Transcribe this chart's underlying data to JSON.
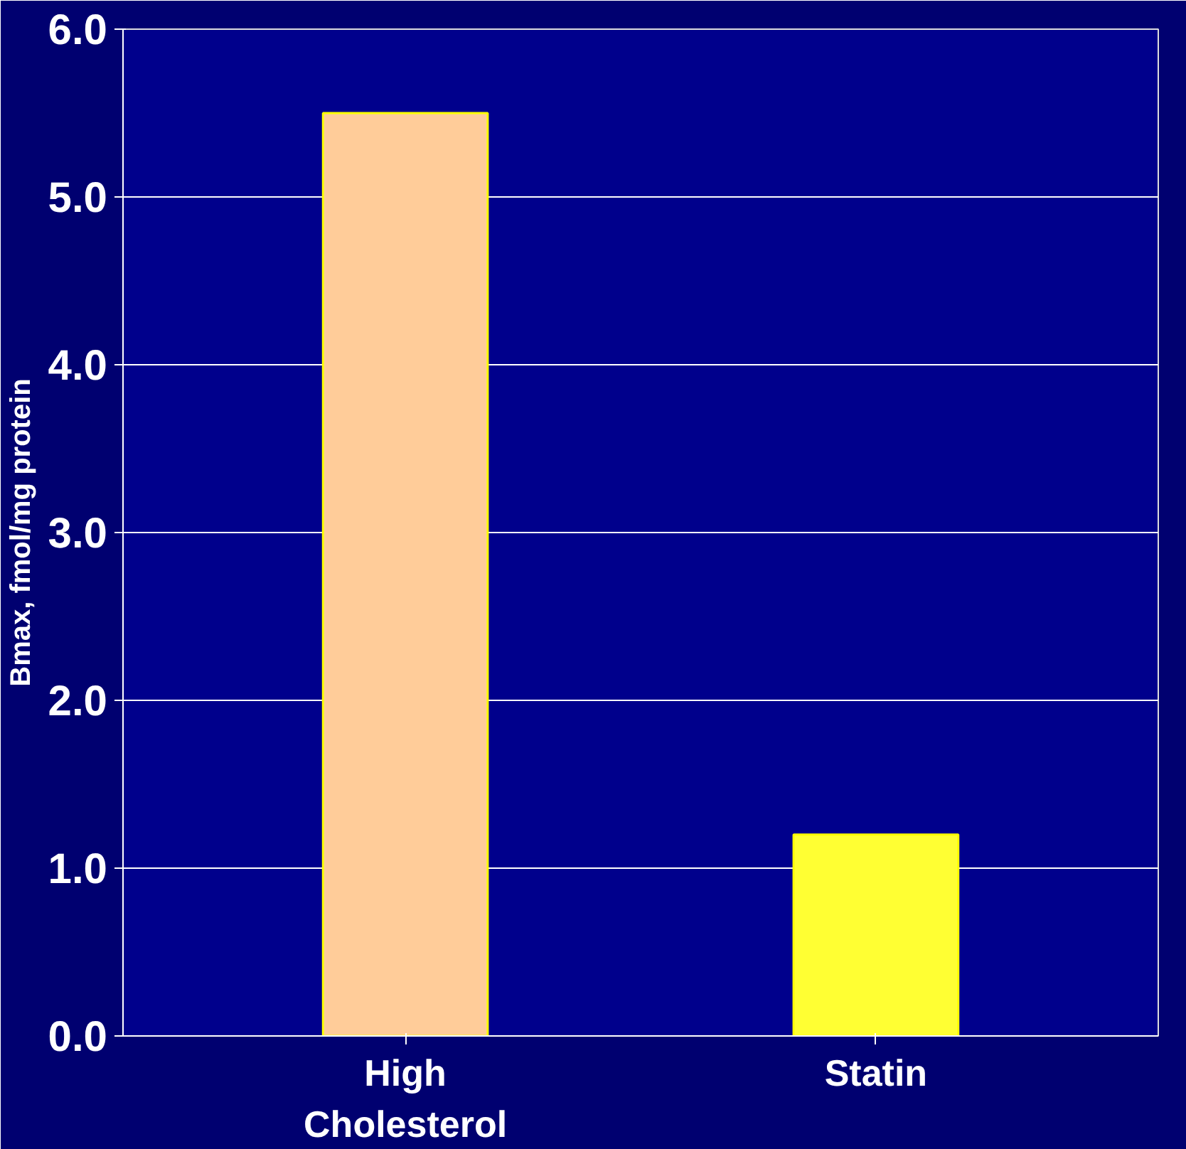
{
  "chart_data": {
    "type": "bar",
    "ylabel": "Bmax, fmol/mg protein",
    "categories": [
      "High Cholesterol",
      "Statin"
    ],
    "values": [
      5.5,
      1.2
    ],
    "colors": [
      "#ffcc99",
      "#ffff33"
    ],
    "ylim": [
      0,
      6
    ],
    "yticks": [
      {
        "value": 0,
        "label": "0.0"
      },
      {
        "value": 1,
        "label": "1.0"
      },
      {
        "value": 2,
        "label": "2.0"
      },
      {
        "value": 3,
        "label": "3.0"
      },
      {
        "value": 4,
        "label": "4.0"
      },
      {
        "value": 5,
        "label": "5.0"
      },
      {
        "value": 6,
        "label": "6.0"
      }
    ],
    "grid": "y"
  }
}
